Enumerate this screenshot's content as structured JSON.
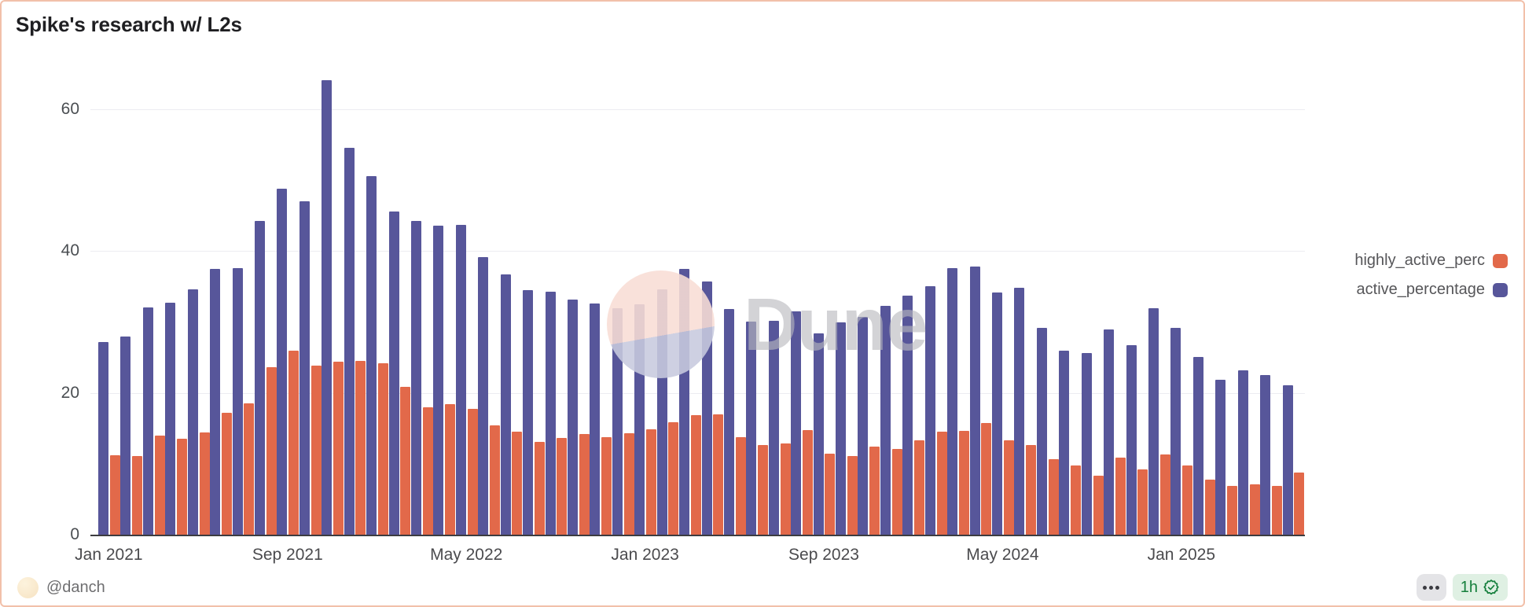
{
  "header": {
    "title": "Spike's research w/ L2s"
  },
  "legend": {
    "items": [
      {
        "label": "highly_active_perc",
        "color": "#e2694a"
      },
      {
        "label": "active_percentage",
        "color": "#57569a"
      }
    ]
  },
  "watermark": {
    "text": "Dune",
    "logo_icon": "dune-logo-circle"
  },
  "footer": {
    "author_handle": "@danch",
    "refresh_badge_label": "1h",
    "menu_icon": "ellipsis-icon",
    "verified_icon": "seal-check-icon"
  },
  "colors": {
    "accent_border": "#f2c0aa",
    "orange_series": "#e2694a",
    "purple_series": "#57569a",
    "gridline": "#ececf1",
    "axis_line": "#3c3c40",
    "badge_green_bg": "#dff0e3",
    "badge_green_text": "#157f3c"
  },
  "chart_data": {
    "type": "bar",
    "n_pairs": 54,
    "grid": "horizontal",
    "legend_position": "right",
    "ylim": [
      0,
      66
    ],
    "y_ticks": [
      0,
      20,
      40,
      60
    ],
    "x_ticks": [
      {
        "index": 0,
        "label": "Jan 2021"
      },
      {
        "index": 8,
        "label": "Sep 2021"
      },
      {
        "index": 16,
        "label": "May 2022"
      },
      {
        "index": 24,
        "label": "Jan 2023"
      },
      {
        "index": 32,
        "label": "Sep 2023"
      },
      {
        "index": 40,
        "label": "May 2024"
      },
      {
        "index": 48,
        "label": "Jan 2025"
      }
    ],
    "series": [
      {
        "name": "active_percentage",
        "color": "#57569a",
        "pair_position": "left",
        "values": [
          27.2,
          28.0,
          32.1,
          32.7,
          34.6,
          37.5,
          37.6,
          44.3,
          48.8,
          47.0,
          64.1,
          54.6,
          50.6,
          45.6,
          44.3,
          43.6,
          43.7,
          39.2,
          36.7,
          34.5,
          34.3,
          33.2,
          32.6,
          31.9,
          32.5,
          34.6,
          37.5,
          35.7,
          31.8,
          30.1,
          30.2,
          31.5,
          28.4,
          29.9,
          30.7,
          32.3,
          33.7,
          35.1,
          37.6,
          37.8,
          34.2,
          34.8,
          29.2,
          26.0,
          25.6,
          28.9,
          26.7,
          31.9,
          29.2,
          25.1,
          21.9,
          23.2,
          22.5,
          21.1
        ]
      },
      {
        "name": "highly_active_perc",
        "color": "#e2694a",
        "pair_position": "right",
        "values": [
          11.2,
          11.1,
          14.0,
          13.5,
          14.4,
          17.2,
          18.5,
          23.6,
          26.0,
          23.8,
          24.4,
          24.5,
          24.2,
          20.9,
          18.0,
          18.4,
          17.8,
          15.4,
          14.5,
          13.1,
          13.6,
          14.2,
          13.8,
          14.3,
          14.9,
          15.9,
          16.9,
          17.0,
          13.8,
          12.6,
          12.9,
          14.7,
          11.4,
          11.1,
          12.4,
          12.1,
          13.3,
          14.5,
          14.6,
          15.8,
          13.3,
          12.6,
          10.7,
          9.8,
          8.3,
          10.9,
          9.2,
          11.3,
          9.8,
          7.8,
          6.9,
          7.1,
          6.9,
          8.8
        ]
      }
    ]
  }
}
